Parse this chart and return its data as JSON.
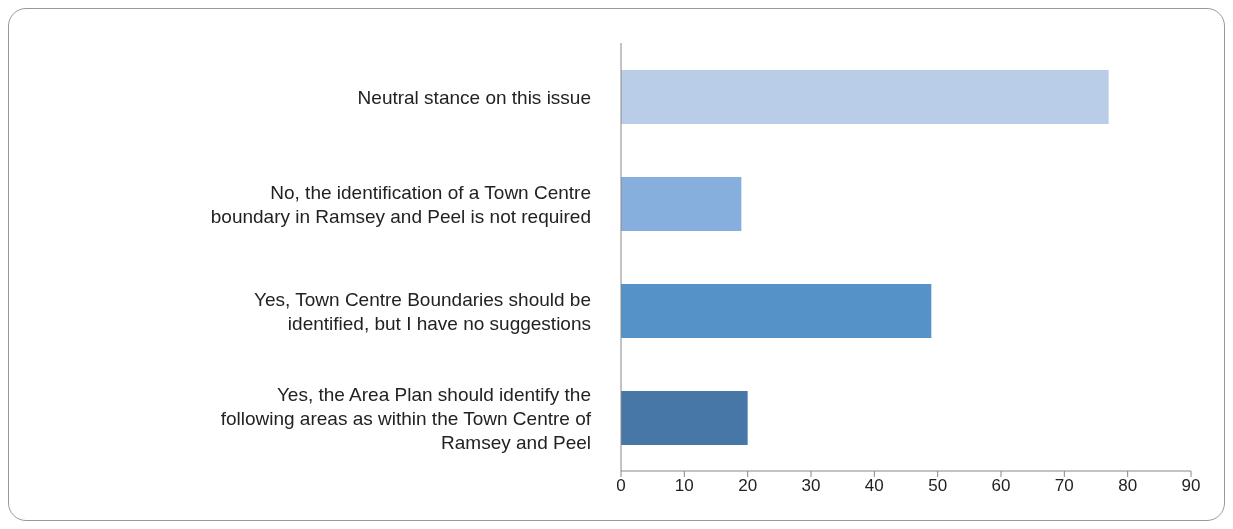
{
  "chart_data": {
    "type": "bar",
    "orientation": "horizontal",
    "categories": [
      "Neutral stance on this issue",
      "No, the identification of a Town Centre boundary in Ramsey and Peel is not required",
      "Yes, Town Centre Boundaries should be identified, but I have no suggestions",
      "Yes, the Area Plan should identify the following areas as within the Town Centre of Ramsey and Peel"
    ],
    "values": [
      77,
      19,
      49,
      20
    ],
    "colors": [
      "#b9cde8",
      "#86afdd",
      "#5592c8",
      "#4677a6"
    ],
    "xlim": [
      0,
      90
    ],
    "xticks": [
      0,
      10,
      20,
      30,
      40,
      50,
      60,
      70,
      80,
      90
    ],
    "grid": false,
    "legend": false
  }
}
